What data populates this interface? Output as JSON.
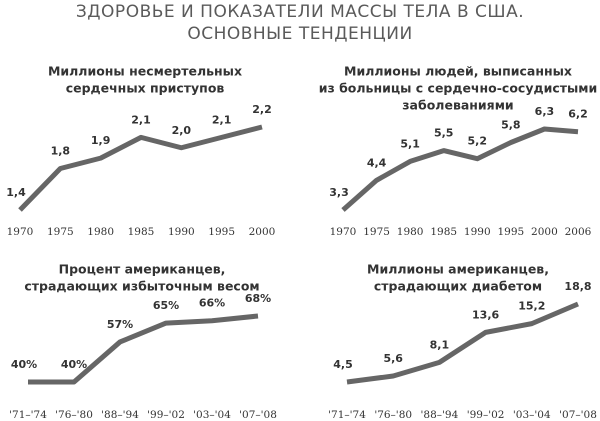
{
  "title": [
    "ЗДОРОВЬЕ И ПОКАЗАТЕЛИ МАССЫ ТЕЛА В США.",
    "ОСНОВНЫЕ ТЕНДЕНЦИИ"
  ],
  "chart_data": [
    {
      "type": "line",
      "title": [
        "Миллионы несмертельных",
        "сердечных приступов"
      ],
      "categories": [
        "1970",
        "1975",
        "1980",
        "1985",
        "1990",
        "1995",
        "2000"
      ],
      "values": [
        1.4,
        1.8,
        1.9,
        2.1,
        2.0,
        2.1,
        2.2
      ],
      "value_labels": [
        "1,4",
        "1,8",
        "1,9",
        "2,1",
        "2,0",
        "2,1",
        "2,2"
      ],
      "color": "#666666"
    },
    {
      "type": "line",
      "title": [
        "Миллионы людей, выписанных",
        "из больницы с сердечно-сосудистыми",
        "заболеваниями"
      ],
      "categories": [
        "1970",
        "1975",
        "1980",
        "1985",
        "1990",
        "1995",
        "2000",
        "2006"
      ],
      "values": [
        3.3,
        4.4,
        5.1,
        5.5,
        5.2,
        5.8,
        6.3,
        6.2
      ],
      "value_labels": [
        "3,3",
        "4,4",
        "5,1",
        "5,5",
        "5,2",
        "5,8",
        "6,3",
        "6,2"
      ],
      "color": "#666666"
    },
    {
      "type": "line",
      "title": [
        "Процент американцев,",
        "страдающих избыточным весом"
      ],
      "categories": [
        "'71–'74",
        "'76–'80",
        "'88–'94",
        "'99–'02",
        "'03–'04",
        "'07–'08"
      ],
      "values": [
        40,
        40,
        57,
        65,
        66,
        68
      ],
      "value_labels": [
        "40%",
        "40%",
        "57%",
        "65%",
        "66%",
        "68%"
      ],
      "color": "#666666"
    },
    {
      "type": "line",
      "title": [
        "Миллионы американцев,",
        "страдающих диабетом"
      ],
      "categories": [
        "'71–'74",
        "'76–'80",
        "'88–'94",
        "'99–'02",
        "'03–'04",
        "'07–'08"
      ],
      "values": [
        4.5,
        5.6,
        8.1,
        13.6,
        15.2,
        18.8
      ],
      "value_labels": [
        "4,5",
        "5,6",
        "8,1",
        "13,6",
        "15,2",
        "18,8"
      ],
      "color": "#666666"
    }
  ]
}
